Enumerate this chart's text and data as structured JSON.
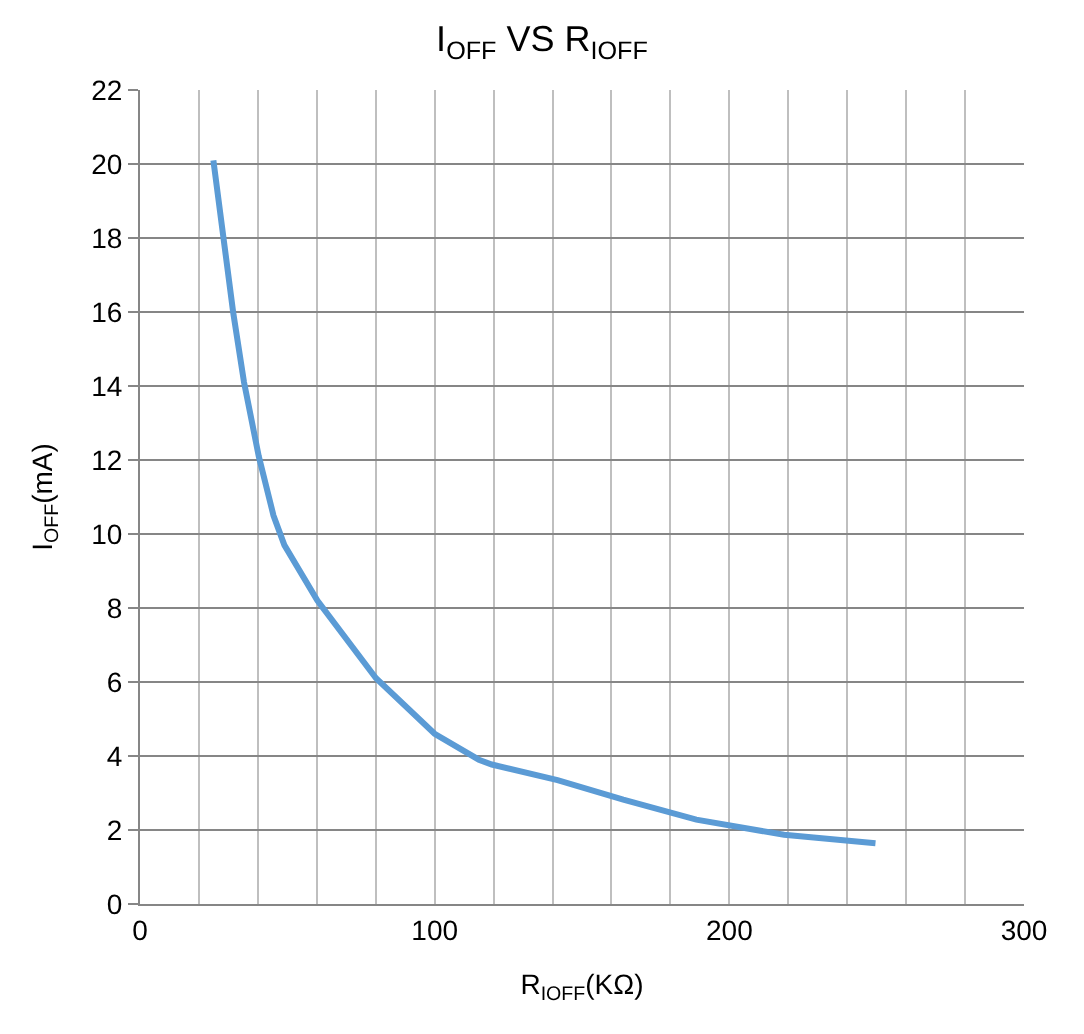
{
  "chart_data": {
    "type": "line",
    "title": "I$_{OFF}$ VS R$_{IOFF}$",
    "xlabel": "R$_{IOFF}$(KΩ)",
    "ylabel": "I$_{OFF}$(mA)",
    "series": [
      {
        "color": "#5b9bd5",
        "x": [
          24.9,
          31.6,
          35.3,
          40.3,
          45.3,
          49,
          60.2,
          80.1,
          100,
          115,
          119.4,
          141.7,
          164,
          188.8,
          218.6,
          249.6
        ],
        "values": [
          20.1,
          16.0,
          14.1,
          12.1,
          10.5,
          9.7,
          8.2,
          6.1,
          4.6,
          3.9,
          3.77,
          3.35,
          2.82,
          2.28,
          1.87,
          1.64
        ]
      }
    ],
    "xlim": [
      0,
      300
    ],
    "xticks": [
      0,
      {
        "value": 20,
        "label": null
      },
      {
        "value": 40,
        "label": null
      },
      {
        "value": 60,
        "label": null
      },
      {
        "value": 80,
        "label": null
      },
      100,
      {
        "value": 120,
        "label": null
      },
      {
        "value": 140,
        "label": null
      },
      {
        "value": 160,
        "label": null
      },
      {
        "value": 180,
        "label": null
      },
      200,
      {
        "value": 220,
        "label": null
      },
      {
        "value": 240,
        "label": null
      },
      {
        "value": 260,
        "label": null
      },
      {
        "value": 280,
        "label": null
      },
      300
    ],
    "ylim": [
      0,
      22
    ],
    "yticks": [
      0,
      2,
      4,
      6,
      8,
      10,
      12,
      14,
      16,
      18,
      20,
      22
    ],
    "grid": true,
    "marker": "none",
    "line_style": "solid"
  }
}
